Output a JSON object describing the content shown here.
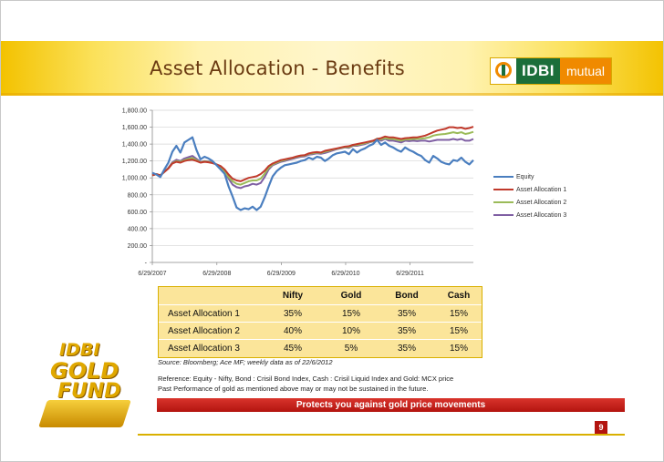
{
  "header": {
    "title": "Asset Allocation - Benefits"
  },
  "logo": {
    "brand": "IDBI",
    "suffix": "mutual",
    "colors": {
      "green": "#1b6e3a",
      "orange": "#f08a00"
    }
  },
  "gold_fund_logo": {
    "line1": "IDBI",
    "line2": "GOLD",
    "line3": "FUND"
  },
  "chart_data": {
    "type": "line",
    "title": "",
    "xlabel": "",
    "ylabel": "",
    "ylim": [
      0,
      1800
    ],
    "yticks": [
      "1,800.00",
      "1,600.00",
      "1,400.00",
      "1,200.00",
      "1,000.00",
      "800.00",
      "600.00",
      "400.00",
      "200.00",
      "-"
    ],
    "ytick_values": [
      1800,
      1600,
      1400,
      1200,
      1000,
      800,
      600,
      400,
      200,
      0
    ],
    "xticks": [
      "6/29/2007",
      "6/29/2008",
      "6/29/2009",
      "6/29/2010",
      "6/29/2011"
    ],
    "x_start": "6/29/2007",
    "x_end": "6/22/2012",
    "grid": true,
    "legend_position": "right",
    "series": [
      {
        "name": "Equity",
        "color": "#4a7ebf",
        "values": [
          1060,
          1040,
          1010,
          1100,
          1180,
          1310,
          1380,
          1300,
          1420,
          1450,
          1480,
          1330,
          1220,
          1250,
          1230,
          1200,
          1150,
          1100,
          1050,
          900,
          780,
          650,
          620,
          640,
          630,
          660,
          620,
          660,
          770,
          900,
          1020,
          1080,
          1120,
          1150,
          1160,
          1170,
          1180,
          1200,
          1210,
          1240,
          1220,
          1250,
          1240,
          1200,
          1230,
          1270,
          1290,
          1300,
          1310,
          1280,
          1340,
          1300,
          1330,
          1350,
          1380,
          1400,
          1450,
          1390,
          1420,
          1380,
          1360,
          1330,
          1310,
          1360,
          1330,
          1310,
          1280,
          1260,
          1210,
          1180,
          1260,
          1230,
          1190,
          1170,
          1160,
          1210,
          1200,
          1240,
          1190,
          1160,
          1210
        ]
      },
      {
        "name": "Asset Allocation 1",
        "color": "#c0392b",
        "values": [
          1030,
          1045,
          1030,
          1070,
          1110,
          1170,
          1190,
          1180,
          1200,
          1210,
          1215,
          1200,
          1180,
          1190,
          1185,
          1175,
          1160,
          1140,
          1100,
          1040,
          990,
          970,
          960,
          980,
          1000,
          1010,
          1020,
          1045,
          1085,
          1140,
          1170,
          1190,
          1210,
          1220,
          1230,
          1240,
          1255,
          1265,
          1270,
          1290,
          1300,
          1305,
          1300,
          1320,
          1330,
          1340,
          1350,
          1360,
          1370,
          1375,
          1390,
          1400,
          1410,
          1420,
          1430,
          1440,
          1460,
          1470,
          1490,
          1480,
          1480,
          1470,
          1460,
          1470,
          1475,
          1480,
          1480,
          1490,
          1500,
          1520,
          1540,
          1560,
          1570,
          1580,
          1600,
          1600,
          1590,
          1595,
          1580,
          1590,
          1605
        ]
      },
      {
        "name": "Asset Allocation 2",
        "color": "#9bbb59",
        "values": [
          1030,
          1045,
          1030,
          1070,
          1115,
          1175,
          1200,
          1190,
          1210,
          1225,
          1235,
          1210,
          1185,
          1195,
          1190,
          1180,
          1160,
          1130,
          1080,
          1010,
          960,
          930,
          920,
          940,
          960,
          970,
          970,
          990,
          1050,
          1120,
          1160,
          1180,
          1200,
          1210,
          1225,
          1235,
          1250,
          1260,
          1265,
          1285,
          1290,
          1300,
          1295,
          1310,
          1320,
          1335,
          1345,
          1355,
          1365,
          1365,
          1385,
          1390,
          1400,
          1410,
          1425,
          1435,
          1465,
          1455,
          1470,
          1460,
          1460,
          1450,
          1440,
          1455,
          1455,
          1460,
          1460,
          1465,
          1470,
          1480,
          1500,
          1510,
          1515,
          1520,
          1530,
          1540,
          1530,
          1540,
          1520,
          1530,
          1545
        ]
      },
      {
        "name": "Asset Allocation 3",
        "color": "#7f5fa3",
        "values": [
          1030,
          1045,
          1025,
          1075,
          1120,
          1185,
          1215,
          1200,
          1230,
          1245,
          1260,
          1225,
          1190,
          1200,
          1195,
          1185,
          1160,
          1120,
          1070,
          990,
          920,
          890,
          880,
          900,
          910,
          930,
          920,
          940,
          1010,
          1100,
          1150,
          1170,
          1190,
          1200,
          1215,
          1225,
          1240,
          1250,
          1255,
          1275,
          1280,
          1290,
          1285,
          1295,
          1310,
          1325,
          1340,
          1350,
          1360,
          1355,
          1380,
          1380,
          1390,
          1400,
          1420,
          1430,
          1460,
          1440,
          1460,
          1440,
          1440,
          1430,
          1420,
          1440,
          1435,
          1440,
          1435,
          1440,
          1440,
          1430,
          1440,
          1450,
          1450,
          1450,
          1450,
          1460,
          1450,
          1460,
          1440,
          1440,
          1460
        ]
      }
    ]
  },
  "allocation_table": {
    "headers": [
      "",
      "Nifty",
      "Gold",
      "Bond",
      "Cash"
    ],
    "rows": [
      {
        "label": "Asset Allocation 1",
        "nifty": "35%",
        "gold": "15%",
        "bond": "35%",
        "cash": "15%"
      },
      {
        "label": "Asset Allocation 2",
        "nifty": "40%",
        "gold": "10%",
        "bond": "35%",
        "cash": "15%"
      },
      {
        "label": "Asset Allocation 3",
        "nifty": "45%",
        "gold": "5%",
        "bond": "35%",
        "cash": "15%"
      }
    ]
  },
  "notes": {
    "source": "Source: Bloomberg; Ace MF; weekly data as of 22/6/2012",
    "reference": "Reference: Equity - Nifty, Bond : Crisil Bond Index, Cash : Crisil Liquid Index and Gold: MCX price",
    "performance": "Past Performance of gold as mentioned above may or may not be sustained in the future."
  },
  "banner": {
    "text": "Protects you against gold price movements",
    "color": "#b3140f"
  },
  "page": {
    "number": "9"
  }
}
